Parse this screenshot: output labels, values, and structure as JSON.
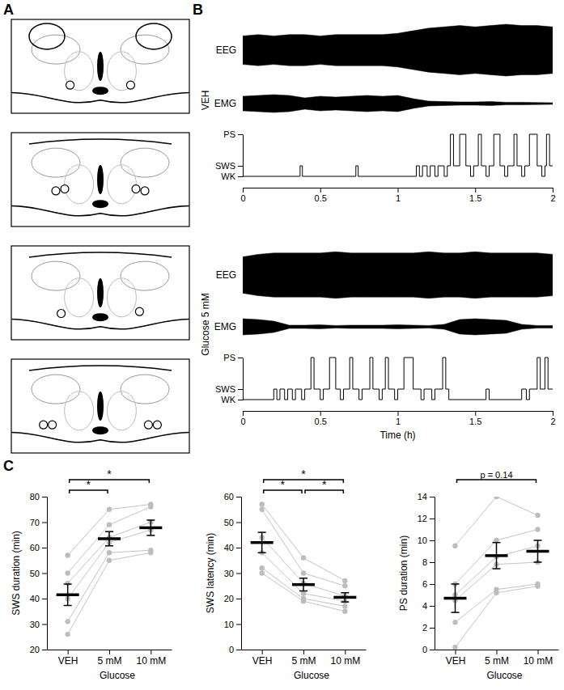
{
  "panel_labels": [
    "A",
    "B",
    "C"
  ],
  "chart_data": [
    {
      "type": "line",
      "title": "VEH",
      "line_style": "step",
      "trace_labels": [
        "EEG",
        "EMG"
      ],
      "envelope_x": [
        0,
        0.1,
        0.2,
        0.3,
        0.4,
        0.5,
        0.6,
        0.7,
        0.8,
        0.9,
        1,
        1.1,
        1.2,
        1.3,
        1.4,
        1.5,
        1.6,
        1.7,
        1.8,
        1.9,
        2
      ],
      "eeg_envelope": [
        0.55,
        0.6,
        0.55,
        0.6,
        0.6,
        0.55,
        0.6,
        0.6,
        0.6,
        0.6,
        0.65,
        0.75,
        0.85,
        0.9,
        0.95,
        0.9,
        0.95,
        1.0,
        0.95,
        0.95,
        0.9
      ],
      "emg_envelope": [
        0.45,
        0.5,
        0.55,
        0.5,
        0.35,
        0.45,
        0.4,
        0.45,
        0.5,
        0.45,
        0.5,
        0.3,
        0.15,
        0.12,
        0.1,
        0.1,
        0.12,
        0.08,
        0.08,
        0.06,
        0.05
      ],
      "x": [
        0,
        0.37,
        0.385,
        0.73,
        0.745,
        1.12,
        1.14,
        1.16,
        1.19,
        1.21,
        1.24,
        1.26,
        1.3,
        1.32,
        1.34,
        1.36,
        1.4,
        1.44,
        1.47,
        1.49,
        1.52,
        1.54,
        1.57,
        1.59,
        1.62,
        1.66,
        1.69,
        1.71,
        1.75,
        1.77,
        1.8,
        1.82,
        1.85,
        1.9,
        1.93,
        1.95,
        1.96,
        1.98,
        2
      ],
      "values": [
        0,
        1,
        0,
        1,
        0,
        1,
        0,
        1,
        0,
        1,
        0,
        1,
        0,
        1,
        4,
        1,
        4,
        1,
        0,
        1,
        4,
        1,
        0,
        1,
        4,
        1,
        0,
        1,
        4,
        1,
        0,
        1,
        4,
        1,
        0,
        1,
        4,
        1,
        1
      ],
      "xlim": [
        0,
        2
      ],
      "xticks": [
        0,
        0.5,
        1,
        1.5,
        2
      ],
      "ylim": [
        0,
        4
      ],
      "yticks": [
        {
          "value": 0,
          "label": "WK"
        },
        {
          "value": 1,
          "label": "SWS"
        },
        {
          "value": 4,
          "label": "PS"
        }
      ]
    },
    {
      "type": "line",
      "title": "Glucose 5 mM",
      "line_style": "step",
      "trace_labels": [
        "EEG",
        "EMG"
      ],
      "xlabel": "Time (h)",
      "envelope_x": [
        0,
        0.1,
        0.2,
        0.3,
        0.4,
        0.5,
        0.6,
        0.7,
        0.8,
        0.9,
        1,
        1.1,
        1.2,
        1.3,
        1.4,
        1.5,
        1.6,
        1.7,
        1.8,
        1.9,
        2
      ],
      "eeg_envelope": [
        0.7,
        0.8,
        0.85,
        0.85,
        0.85,
        0.85,
        0.9,
        0.85,
        0.85,
        0.85,
        0.85,
        0.85,
        0.9,
        0.85,
        0.85,
        0.9,
        0.85,
        0.85,
        0.85,
        0.85,
        0.8
      ],
      "emg_envelope": [
        0.5,
        0.45,
        0.35,
        0.1,
        0.1,
        0.12,
        0.08,
        0.1,
        0.1,
        0.1,
        0.12,
        0.1,
        0.08,
        0.15,
        0.45,
        0.5,
        0.45,
        0.4,
        0.15,
        0.08,
        0.08
      ],
      "x": [
        0,
        0.2,
        0.22,
        0.24,
        0.27,
        0.29,
        0.32,
        0.34,
        0.38,
        0.4,
        0.44,
        0.46,
        0.5,
        0.52,
        0.56,
        0.6,
        0.63,
        0.65,
        0.69,
        0.71,
        0.75,
        0.77,
        0.82,
        0.84,
        0.88,
        0.9,
        0.92,
        0.94,
        0.98,
        1,
        1.04,
        1.1,
        1.15,
        1.17,
        1.22,
        1.24,
        1.29,
        1.31,
        1.33,
        1.57,
        1.59,
        1.8,
        1.83,
        1.85,
        1.9,
        1.92,
        1.95,
        1.97,
        2
      ],
      "values": [
        0,
        1,
        0,
        1,
        0,
        1,
        0,
        1,
        0,
        1,
        4,
        1,
        0,
        1,
        4,
        1,
        0,
        1,
        4,
        1,
        0,
        1,
        4,
        1,
        0,
        1,
        4,
        1,
        0,
        1,
        4,
        1,
        0,
        1,
        0,
        1,
        4,
        1,
        0,
        1,
        0,
        1,
        0,
        1,
        4,
        1,
        4,
        1,
        1
      ],
      "xlim": [
        0,
        2
      ],
      "xticks": [
        0,
        0.5,
        1,
        1.5,
        2
      ],
      "ylim": [
        0,
        4
      ],
      "yticks": [
        {
          "value": 0,
          "label": "WK"
        },
        {
          "value": 1,
          "label": "SWS"
        },
        {
          "value": 4,
          "label": "PS"
        }
      ]
    },
    {
      "type": "scatter",
      "ylabel": "SWS duration (min)",
      "xlabel": "Glucose",
      "categories": [
        "VEH",
        "5 mM",
        "10 mM"
      ],
      "values": [
        41.5,
        63.5,
        67.8
      ],
      "errors": [
        4.2,
        2.8,
        3.0
      ],
      "individual_values": [
        [
          57,
          75,
          77
        ],
        [
          50,
          69,
          76
        ],
        [
          46,
          64,
          70
        ],
        [
          40,
          62,
          67
        ],
        [
          31,
          58,
          59
        ],
        [
          26,
          55,
          58
        ]
      ],
      "ylim": [
        20,
        80
      ],
      "yticks": [
        20,
        30,
        40,
        50,
        60,
        70,
        80
      ],
      "annotations": [
        {
          "from": 0,
          "to": 1,
          "label": "*"
        },
        {
          "from": 0,
          "to": 2,
          "label": "*"
        }
      ]
    },
    {
      "type": "scatter",
      "ylabel": "SWS latency (min)",
      "xlabel": "Glucose",
      "categories": [
        "VEH",
        "5 mM",
        "10 mM"
      ],
      "values": [
        42,
        25.5,
        20.5
      ],
      "errors": [
        4,
        2.5,
        1.8
      ],
      "individual_values": [
        [
          57,
          36,
          27
        ],
        [
          55,
          30,
          25
        ],
        [
          44,
          26,
          21
        ],
        [
          38,
          22,
          19
        ],
        [
          32,
          20,
          17
        ],
        [
          30,
          19,
          15
        ]
      ],
      "ylim": [
        0,
        60
      ],
      "yticks": [
        0,
        10,
        20,
        30,
        40,
        50,
        60
      ],
      "annotations": [
        {
          "from": 0,
          "to": 1,
          "label": "*"
        },
        {
          "from": 1,
          "to": 2,
          "label": "*"
        },
        {
          "from": 0,
          "to": 2,
          "label": "*"
        }
      ]
    },
    {
      "type": "scatter",
      "ylabel": "PS duration (min)",
      "xlabel": "Glucose",
      "categories": [
        "VEH",
        "5 mM",
        "10 mM"
      ],
      "values": [
        4.7,
        8.6,
        9.0
      ],
      "errors": [
        1.3,
        1.2,
        1.0
      ],
      "individual_values": [
        [
          9.5,
          14,
          12.3
        ],
        [
          6,
          10,
          11
        ],
        [
          5,
          8.5,
          9.5
        ],
        [
          4.5,
          7.8,
          8
        ],
        [
          2.5,
          5.5,
          6
        ],
        [
          0.2,
          5.2,
          5.8
        ]
      ],
      "ylim": [
        0,
        14
      ],
      "yticks": [
        0,
        2,
        4,
        6,
        8,
        10,
        12,
        14
      ],
      "annotations": [
        {
          "from": 0,
          "to": 2,
          "label": "p = 0.14"
        }
      ]
    }
  ]
}
